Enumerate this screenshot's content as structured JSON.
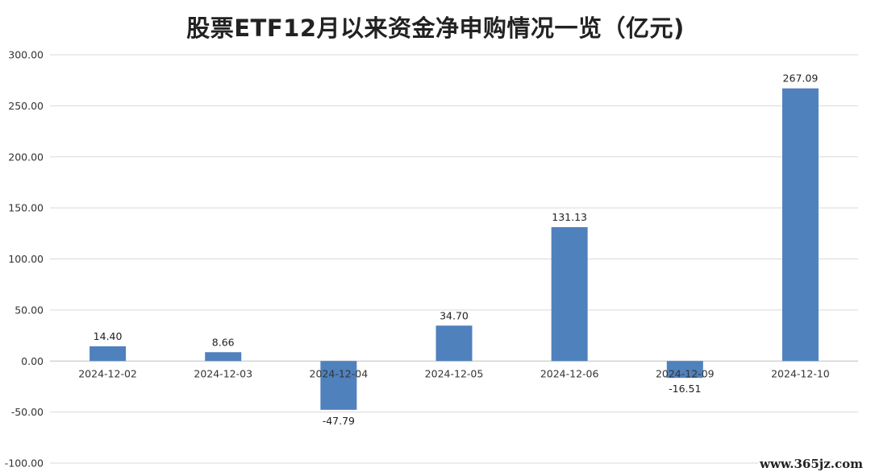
{
  "chart_data": {
    "type": "bar",
    "title": "股票ETF12月以来资金净申购情况一览（亿元)",
    "categories": [
      "2024-12-02",
      "2024-12-03",
      "2024-12-04",
      "2024-12-05",
      "2024-12-06",
      "2024-12-09",
      "2024-12-10"
    ],
    "series": [
      {
        "values": [
          14.4,
          8.66,
          -47.79,
          34.7,
          131.13,
          -16.51,
          267.09
        ]
      }
    ],
    "data_labels": [
      "14.40",
      "8.66",
      "-47.79",
      "34.70",
      "131.13",
      "-16.51",
      "267.09"
    ],
    "ylim": [
      -100,
      300
    ],
    "yticks": [
      -100,
      -50,
      0,
      50,
      100,
      150,
      200,
      250,
      300
    ],
    "ytick_labels": [
      "-100.00",
      "-50.00",
      "0.00",
      "50.00",
      "100.00",
      "150.00",
      "200.00",
      "250.00",
      "300.00"
    ],
    "grid": true,
    "legend": "none",
    "bar_color": "#4f81bd"
  },
  "watermark": "www.365jz.com"
}
